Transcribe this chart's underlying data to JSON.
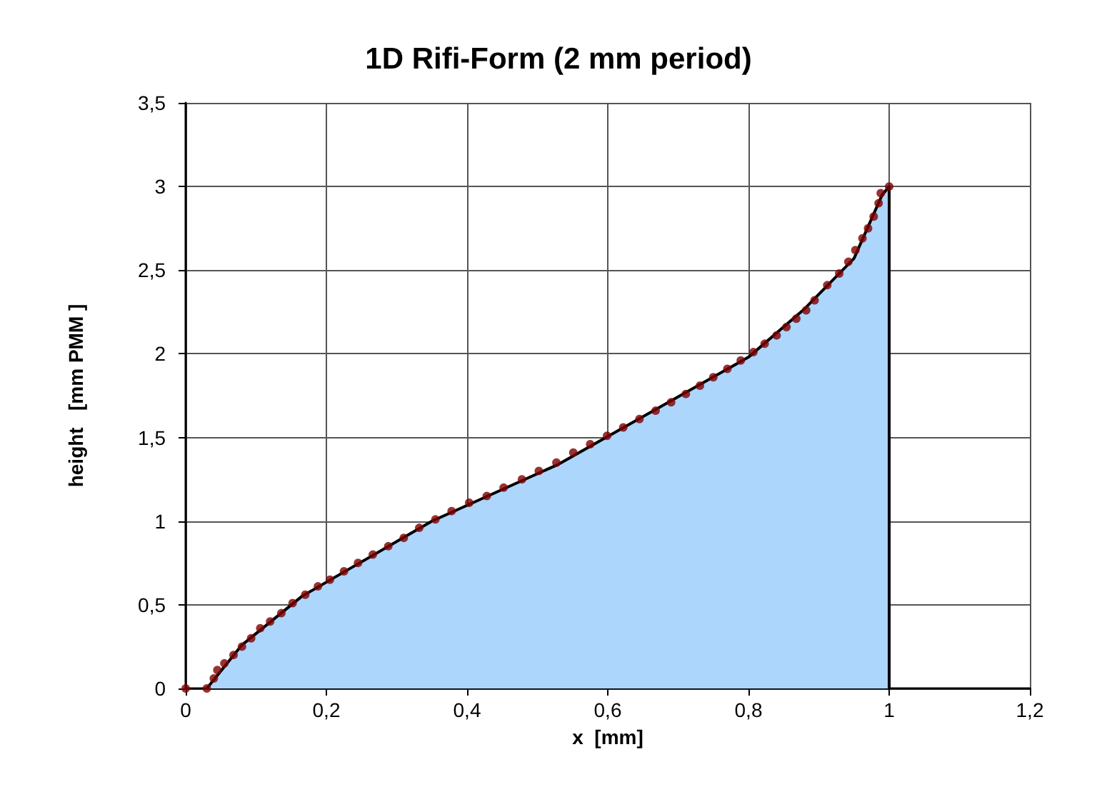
{
  "chart_data": {
    "type": "area",
    "title": "1D Rifi-Form (2 mm period)",
    "xlabel": "x  [mm]",
    "ylabel": "height   [mm PMM ]",
    "xlim": [
      0,
      1.2
    ],
    "xticks": [
      0,
      {
        "value": 0.2,
        "label": "0,2"
      },
      {
        "value": 0.4,
        "label": "0,4"
      },
      {
        "value": 0.6,
        "label": "0,6"
      },
      {
        "value": 0.8,
        "label": "0,8"
      },
      1,
      {
        "value": 1.2,
        "label": "1,2"
      }
    ],
    "ylim": [
      0,
      3.5
    ],
    "yticks": [
      0,
      {
        "value": 0.5,
        "label": "0,5"
      },
      1,
      {
        "value": 1.5,
        "label": "1,5"
      },
      2,
      {
        "value": 2.5,
        "label": "2,5"
      },
      3,
      {
        "value": 3.5,
        "label": "3,5"
      }
    ],
    "grid": true,
    "series": [
      {
        "color": "#add6fd",
        "marker": "none",
        "x": [
          0.03,
          0.08,
          0.165,
          0.35,
          0.53,
          0.8,
          0.88,
          0.95,
          0.99,
          1.0,
          1.0
        ],
        "values": [
          0,
          0.26,
          0.55,
          1.0,
          1.34,
          1.98,
          2.27,
          2.57,
          2.95,
          3.0,
          0
        ]
      },
      {
        "type": "scatter",
        "color": "#800000",
        "marker": "circle",
        "x": [
          0,
          0.03,
          0.04,
          0.045,
          0.055,
          0.068,
          0.08,
          0.093,
          0.106,
          0.12,
          0.136,
          0.152,
          0.17,
          0.188,
          0.205,
          0.225,
          0.245,
          0.266,
          0.288,
          0.31,
          0.332,
          0.355,
          0.378,
          0.403,
          0.428,
          0.452,
          0.478,
          0.502,
          0.527,
          0.551,
          0.575,
          0.599,
          0.622,
          0.645,
          0.668,
          0.69,
          0.711,
          0.731,
          0.75,
          0.77,
          0.789,
          0.807,
          0.823,
          0.84,
          0.854,
          0.868,
          0.882,
          0.894,
          0.912,
          0.929,
          0.942,
          0.952,
          0.962,
          0.97,
          0.978,
          0.985,
          0.988,
          1.0
        ],
        "values": [
          0,
          0,
          0.06,
          0.11,
          0.15,
          0.2,
          0.25,
          0.3,
          0.36,
          0.4,
          0.45,
          0.51,
          0.56,
          0.61,
          0.65,
          0.7,
          0.75,
          0.8,
          0.85,
          0.9,
          0.96,
          1.01,
          1.06,
          1.11,
          1.15,
          1.2,
          1.25,
          1.3,
          1.35,
          1.41,
          1.46,
          1.51,
          1.56,
          1.61,
          1.66,
          1.71,
          1.76,
          1.81,
          1.86,
          1.91,
          1.96,
          2.01,
          2.06,
          2.11,
          2.16,
          2.21,
          2.26,
          2.32,
          2.41,
          2.48,
          2.55,
          2.62,
          2.69,
          2.75,
          2.82,
          2.9,
          2.96,
          3.0
        ]
      }
    ]
  }
}
